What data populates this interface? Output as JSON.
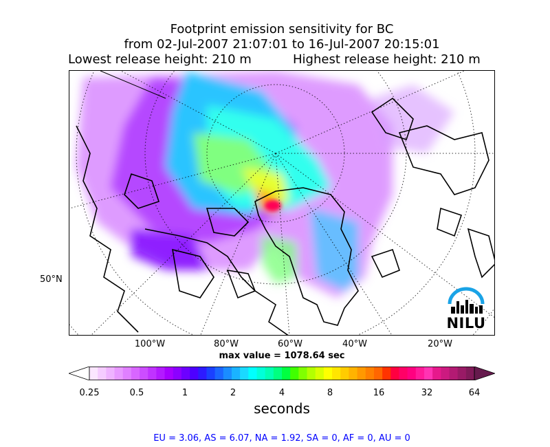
{
  "title_line1": "Footprint emission sensitivity for BC",
  "title_line2": "from 02-Jul-2007 21:07:01 to 16-Jul-2007 20:15:01",
  "subtitle_left": "Lowest release height: 210 m",
  "subtitle_right": "Highest release height: 210 m",
  "lon_ticks": [
    "100°W",
    "80°W",
    "60°W",
    "40°W",
    "20°W"
  ],
  "lat_tick": "50°N",
  "max_value": "max value = 1078.64 sec",
  "colorbar": {
    "tick_labels": [
      "0.25",
      "0.5",
      "1",
      "2",
      "4",
      "8",
      "16",
      "32",
      "64"
    ],
    "unit_label": "seconds",
    "colors": [
      "#ffffff",
      "#fbe6ff",
      "#f5ccff",
      "#efb3ff",
      "#e899ff",
      "#e080ff",
      "#d866ff",
      "#cc4dff",
      "#c033ff",
      "#b31aff",
      "#a600ff",
      "#8c00ff",
      "#6d00ff",
      "#4d00ff",
      "#2d1aff",
      "#1a40ff",
      "#1a66ff",
      "#1a8cff",
      "#1ab3ff",
      "#1ad9ff",
      "#00ffff",
      "#00ffd9",
      "#00ffb3",
      "#00ff80",
      "#00ff40",
      "#40ff00",
      "#80ff00",
      "#b3ff00",
      "#d9ff00",
      "#ffff00",
      "#ffe600",
      "#ffcc00",
      "#ffb300",
      "#ff9900",
      "#ff8000",
      "#ff6600",
      "#ff3300",
      "#ff0040",
      "#ff0066",
      "#ff0080",
      "#ff1a99",
      "#ff33b3",
      "#e6198c",
      "#cc1a80",
      "#b31a73",
      "#991a66",
      "#801a59",
      "#661a4d"
    ]
  },
  "region_stats": "EU = 3.06,  AS = 6.07,  NA = 1.92,  SA = 0,  AF = 0,  AU = 0",
  "logo_text": "NILU"
}
